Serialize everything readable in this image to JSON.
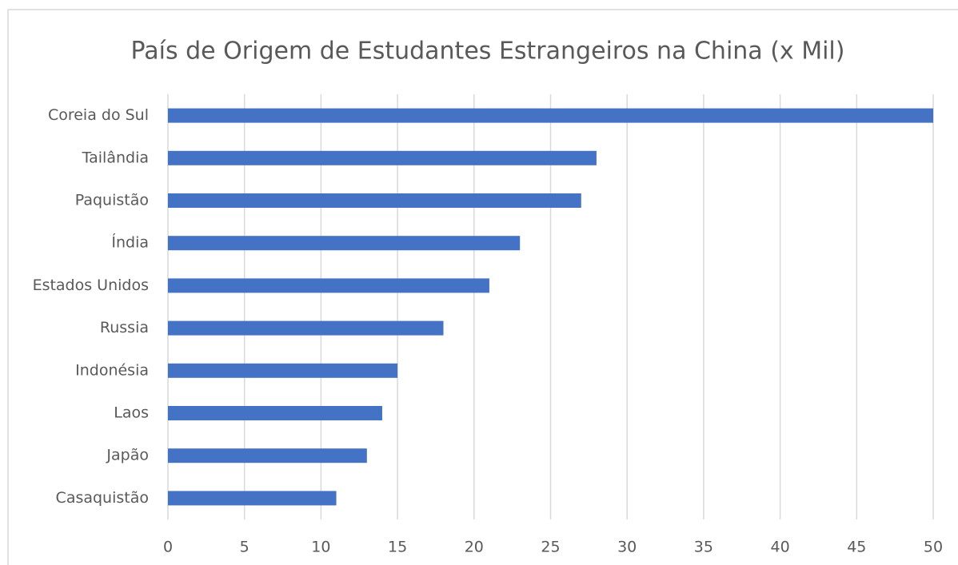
{
  "chart_data": {
    "type": "barh",
    "title": "País de Origem de Estudantes Estrangeiros na China (x Mil)",
    "categories": [
      "Coreia do Sul",
      "Tailândia",
      "Paquistão",
      "Índia",
      "Estados Unidos",
      "Russia",
      "Indonésia",
      "Laos",
      "Japão",
      "Casaquistão"
    ],
    "values": [
      50,
      28,
      27,
      23,
      21,
      18,
      15,
      14,
      13,
      11
    ],
    "color": "#4472c4",
    "xlim": [
      0,
      50
    ],
    "xticks": [
      0,
      5,
      10,
      15,
      20,
      25,
      30,
      35,
      40,
      45,
      50
    ],
    "grid": true
  }
}
